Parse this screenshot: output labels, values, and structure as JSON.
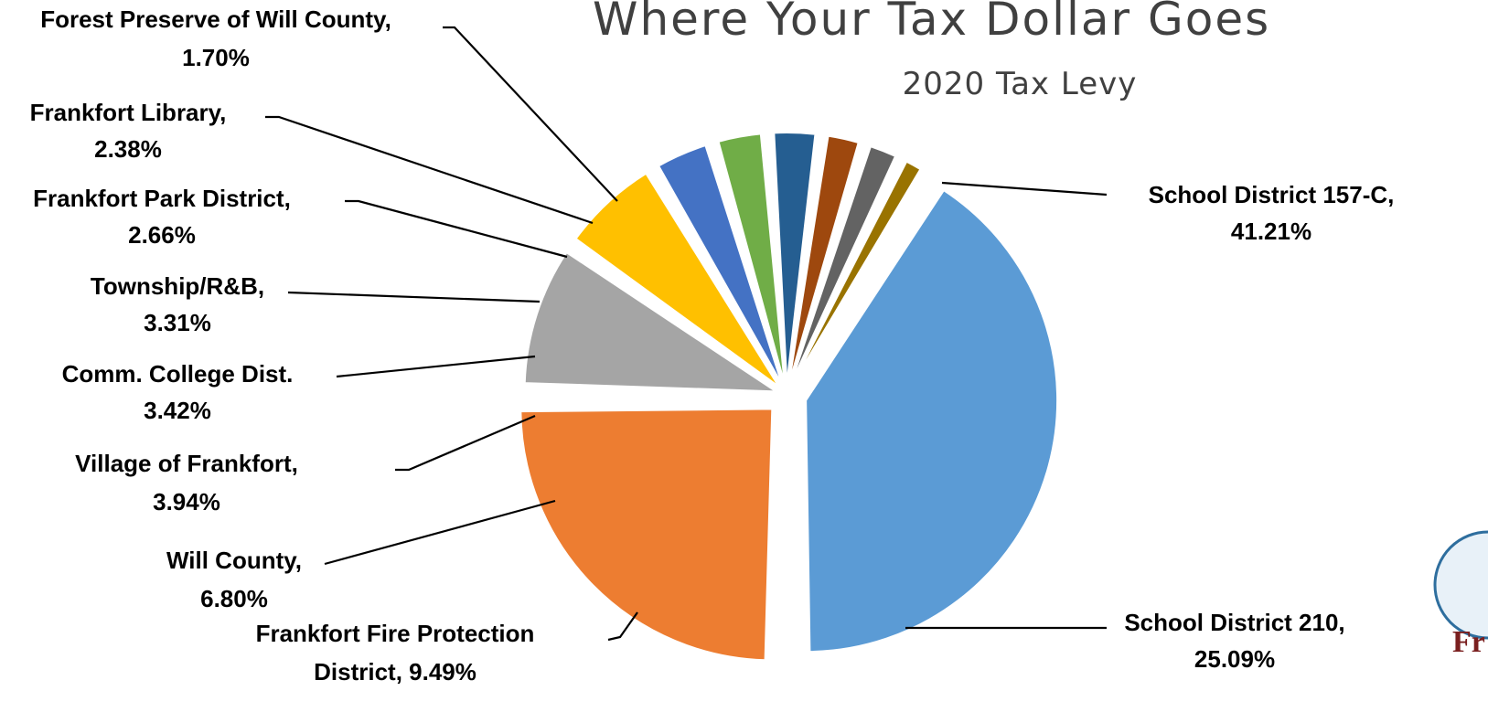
{
  "chart_data": {
    "type": "pie",
    "title": "Where Your Tax Dollar Goes",
    "subtitle": "2020 Tax Levy",
    "slices": [
      {
        "name": "School District 157-C,",
        "value": 41.21,
        "value_label": "41.21%",
        "color": "#5B9BD5"
      },
      {
        "name": "School District 210,",
        "value": 25.09,
        "value_label": "25.09%",
        "color": "#ED7D31"
      },
      {
        "name": "Frankfort Fire Protection District,",
        "value": 9.49,
        "value_label": "9.49%",
        "color": "#A5A5A5"
      },
      {
        "name": "Will County,",
        "value": 6.8,
        "value_label": "6.80%",
        "color": "#FFC000"
      },
      {
        "name": "Village of Frankfort,",
        "value": 3.94,
        "value_label": "3.94%",
        "color": "#4472C4"
      },
      {
        "name": "Comm. College Dist.",
        "value": 3.42,
        "value_label": "3.42%",
        "color": "#70AD47"
      },
      {
        "name": "Township/R&B,",
        "value": 3.31,
        "value_label": "3.31%",
        "color": "#255E91"
      },
      {
        "name": "Frankfort Park District,",
        "value": 2.66,
        "value_label": "2.66%",
        "color": "#9E480E"
      },
      {
        "name": "Frankfort Library,",
        "value": 2.38,
        "value_label": "2.38%",
        "color": "#636363"
      },
      {
        "name": "Forest Preserve of Will County,",
        "value": 1.7,
        "value_label": "1.70%",
        "color": "#997300"
      }
    ],
    "labels": [
      {
        "line1": "School District 157-C,",
        "line2": "41.21%"
      },
      {
        "line1": "School District 210,",
        "line2": "25.09%"
      },
      {
        "line1": "Frankfort Fire Protection",
        "line2": "District, 9.49%"
      },
      {
        "line1": "Will County,",
        "line2": "6.80%"
      },
      {
        "line1": "Village of Frankfort,",
        "line2": "3.94%"
      },
      {
        "line1": "Comm. College Dist.",
        "line2": "3.42%"
      },
      {
        "line1": "Township/R&B,",
        "line2": "3.31%"
      },
      {
        "line1": "Frankfort Park District,",
        "line2": "2.66%"
      },
      {
        "line1": "Frankfort Library,",
        "line2": "2.38%"
      },
      {
        "line1": "Forest Preserve of Will County,",
        "line2": "1.70%"
      }
    ],
    "legend": "none"
  },
  "logo": {
    "text": "Fr",
    "colors": [
      "#2e6e9e",
      "#7a1f1f"
    ]
  }
}
